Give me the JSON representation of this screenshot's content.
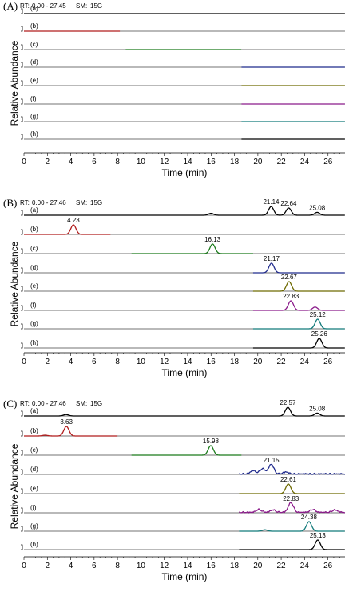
{
  "colors": {
    "a": "#000000",
    "b": "#b01c1c",
    "c": "#1a7a1a",
    "d": "#1f2a8c",
    "e": "#6e6a00",
    "f": "#8a1a8a",
    "g": "#117a7a",
    "h": "#000000",
    "header_value": "#1f3fae"
  },
  "chart_data": [
    {
      "type": "line",
      "panel": "(A)",
      "header": {
        "rt_label": "RT:",
        "rt_value": "0.00 - 27.45",
        "sm_label": "SM:",
        "sm_value": "15G"
      },
      "ylabel": "Relative Abundance",
      "xlabel": "Time (min)",
      "xlim": [
        0,
        27.45
      ],
      "xticks": [
        0,
        2,
        4,
        6,
        8,
        10,
        12,
        14,
        16,
        18,
        20,
        22,
        24,
        26
      ],
      "tracks": [
        {
          "label": "(a)",
          "color_key": "a",
          "segment": [
            0,
            27.45
          ],
          "peaks": []
        },
        {
          "label": "(b)",
          "color_key": "b",
          "segment": [
            0,
            8.2
          ],
          "peaks": []
        },
        {
          "label": "(c)",
          "color_key": "c",
          "segment": [
            8.7,
            18.6
          ],
          "peaks": []
        },
        {
          "label": "(d)",
          "color_key": "d",
          "segment": [
            18.6,
            27.45
          ],
          "peaks": []
        },
        {
          "label": "(e)",
          "color_key": "e",
          "segment": [
            18.6,
            27.45
          ],
          "peaks": []
        },
        {
          "label": "(f)",
          "color_key": "f",
          "segment": [
            18.6,
            27.45
          ],
          "peaks": []
        },
        {
          "label": "(g)",
          "color_key": "g",
          "segment": [
            18.6,
            27.45
          ],
          "peaks": []
        },
        {
          "label": "(h)",
          "color_key": "h",
          "segment": [
            18.6,
            27.45
          ],
          "peaks": []
        }
      ]
    },
    {
      "type": "line",
      "panel": "(B)",
      "header": {
        "rt_label": "RT:",
        "rt_value": "0.00 - 27.46",
        "sm_label": "SM:",
        "sm_value": "15G"
      },
      "ylabel": "Relative Abundance",
      "xlabel": "Time (min)",
      "xlim": [
        0,
        27.46
      ],
      "xticks": [
        0,
        2,
        4,
        6,
        8,
        10,
        12,
        14,
        16,
        18,
        20,
        22,
        24,
        26
      ],
      "tracks": [
        {
          "label": "(a)",
          "color_key": "a",
          "segment": [
            0,
            27.46
          ],
          "peaks": [
            {
              "rt": 16.0,
              "height": 0.2
            },
            {
              "rt": 21.14,
              "height": 0.9,
              "label": "21.14"
            },
            {
              "rt": 22.64,
              "height": 0.75,
              "label": "22.64"
            },
            {
              "rt": 25.08,
              "height": 0.3,
              "label": "25.08"
            }
          ]
        },
        {
          "label": "(b)",
          "color_key": "b",
          "segment": [
            0,
            7.4
          ],
          "peaks": [
            {
              "rt": 4.23,
              "height": 1.0,
              "label": "4.23"
            }
          ]
        },
        {
          "label": "(c)",
          "color_key": "c",
          "segment": [
            9.2,
            19.6
          ],
          "peaks": [
            {
              "rt": 16.13,
              "height": 1.0,
              "label": "16.13"
            }
          ]
        },
        {
          "label": "(d)",
          "color_key": "d",
          "segment": [
            19.6,
            27.46
          ],
          "peaks": [
            {
              "rt": 21.17,
              "height": 1.0,
              "label": "21.17"
            }
          ]
        },
        {
          "label": "(e)",
          "color_key": "e",
          "segment": [
            19.6,
            27.46
          ],
          "peaks": [
            {
              "rt": 22.67,
              "height": 1.0,
              "label": "22.67"
            }
          ]
        },
        {
          "label": "(f)",
          "color_key": "f",
          "segment": [
            19.6,
            27.46
          ],
          "peaks": [
            {
              "rt": 22.83,
              "height": 1.0,
              "label": "22.83"
            },
            {
              "rt": 24.9,
              "height": 0.35
            }
          ]
        },
        {
          "label": "(g)",
          "color_key": "g",
          "segment": [
            19.6,
            27.46
          ],
          "peaks": [
            {
              "rt": 25.12,
              "height": 1.0,
              "label": "25.12"
            }
          ]
        },
        {
          "label": "(h)",
          "color_key": "h",
          "segment": [
            19.6,
            27.46
          ],
          "peaks": [
            {
              "rt": 25.26,
              "height": 1.0,
              "label": "25.26"
            }
          ]
        }
      ]
    },
    {
      "type": "line",
      "panel": "(C)",
      "header": {
        "rt_label": "RT:",
        "rt_value": "0.00 - 27.46",
        "sm_label": "SM:",
        "sm_value": "15G"
      },
      "ylabel": "Relative Abundance",
      "xlabel": "Time (min)",
      "xlim": [
        0,
        27.46
      ],
      "xticks": [
        0,
        2,
        4,
        6,
        8,
        10,
        12,
        14,
        16,
        18,
        20,
        22,
        24,
        26
      ],
      "tracks": [
        {
          "label": "(a)",
          "color_key": "a",
          "segment": [
            0,
            27.46
          ],
          "peaks": [
            {
              "rt": 3.6,
              "height": 0.15
            },
            {
              "rt": 22.57,
              "height": 0.9,
              "label": "22.57"
            },
            {
              "rt": 25.08,
              "height": 0.3,
              "label": "25.08"
            }
          ]
        },
        {
          "label": "(b)",
          "color_key": "b",
          "segment": [
            0,
            8.0
          ],
          "peaks": [
            {
              "rt": 3.63,
              "height": 1.0,
              "label": "3.63"
            },
            {
              "rt": 1.8,
              "height": 0.08
            }
          ]
        },
        {
          "label": "(c)",
          "color_key": "c",
          "segment": [
            9.2,
            18.6
          ],
          "peaks": [
            {
              "rt": 15.98,
              "height": 1.0,
              "label": "15.98"
            }
          ]
        },
        {
          "label": "(d)",
          "color_key": "d",
          "segment": [
            18.4,
            27.46
          ],
          "noise": true,
          "peaks": [
            {
              "rt": 21.15,
              "height": 1.0,
              "label": "21.15"
            },
            {
              "rt": 19.6,
              "height": 0.35
            },
            {
              "rt": 20.4,
              "height": 0.55
            },
            {
              "rt": 22.4,
              "height": 0.2
            }
          ]
        },
        {
          "label": "(e)",
          "color_key": "e",
          "segment": [
            18.4,
            27.46
          ],
          "peaks": [
            {
              "rt": 22.61,
              "height": 1.0,
              "label": "22.61"
            }
          ]
        },
        {
          "label": "(f)",
          "color_key": "f",
          "segment": [
            18.4,
            27.46
          ],
          "noise": true,
          "peaks": [
            {
              "rt": 22.83,
              "height": 1.0,
              "label": "22.83"
            },
            {
              "rt": 20.1,
              "height": 0.3
            },
            {
              "rt": 21.3,
              "height": 0.25
            },
            {
              "rt": 24.7,
              "height": 0.3
            },
            {
              "rt": 26.6,
              "height": 0.25
            }
          ]
        },
        {
          "label": "(g)",
          "color_key": "g",
          "segment": [
            18.4,
            27.46
          ],
          "peaks": [
            {
              "rt": 24.38,
              "height": 1.0,
              "label": "24.38"
            },
            {
              "rt": 20.6,
              "height": 0.15
            }
          ]
        },
        {
          "label": "(h)",
          "color_key": "h",
          "segment": [
            18.4,
            27.46
          ],
          "peaks": [
            {
              "rt": 25.13,
              "height": 1.0,
              "label": "25.13"
            }
          ]
        }
      ]
    }
  ]
}
